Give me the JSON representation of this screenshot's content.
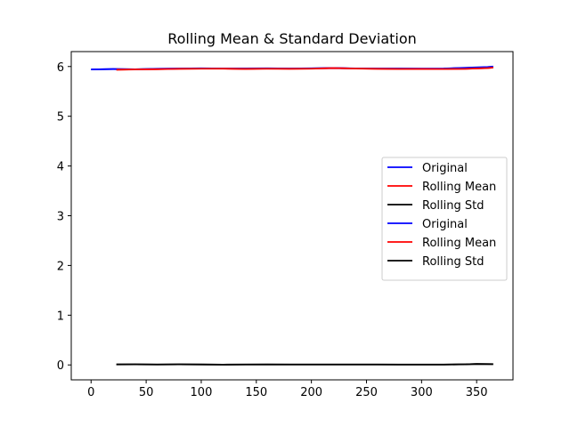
{
  "chart_data": {
    "type": "line",
    "title": "Rolling Mean & Standard Deviation",
    "xlabel": "",
    "ylabel": "",
    "xlim": [
      -18,
      383
    ],
    "ylim": [
      -0.3,
      6.3
    ],
    "x_ticks": [
      0,
      50,
      100,
      150,
      200,
      250,
      300,
      350
    ],
    "y_ticks": [
      0,
      1,
      2,
      3,
      4,
      5,
      6
    ],
    "grid": false,
    "legend_position": "center-right",
    "series": [
      {
        "name": "Original",
        "color": "#0000ff",
        "points": [
          [
            0,
            5.94
          ],
          [
            20,
            5.95
          ],
          [
            40,
            5.945
          ],
          [
            60,
            5.955
          ],
          [
            80,
            5.96
          ],
          [
            100,
            5.965
          ],
          [
            120,
            5.96
          ],
          [
            140,
            5.962
          ],
          [
            160,
            5.965
          ],
          [
            180,
            5.96
          ],
          [
            200,
            5.965
          ],
          [
            220,
            5.97
          ],
          [
            240,
            5.962
          ],
          [
            260,
            5.96
          ],
          [
            280,
            5.96
          ],
          [
            300,
            5.958
          ],
          [
            320,
            5.96
          ],
          [
            340,
            5.975
          ],
          [
            360,
            5.99
          ],
          [
            365,
            6.0
          ]
        ]
      },
      {
        "name": "Rolling Mean",
        "color": "#ff0000",
        "points": [
          [
            23,
            5.935
          ],
          [
            40,
            5.94
          ],
          [
            60,
            5.945
          ],
          [
            80,
            5.955
          ],
          [
            100,
            5.958
          ],
          [
            120,
            5.958
          ],
          [
            140,
            5.95
          ],
          [
            160,
            5.958
          ],
          [
            180,
            5.955
          ],
          [
            200,
            5.958
          ],
          [
            220,
            5.97
          ],
          [
            240,
            5.96
          ],
          [
            260,
            5.955
          ],
          [
            280,
            5.952
          ],
          [
            300,
            5.952
          ],
          [
            320,
            5.95
          ],
          [
            340,
            5.955
          ],
          [
            360,
            5.97
          ],
          [
            365,
            5.98
          ]
        ]
      },
      {
        "name": "Rolling Std",
        "color": "#000000",
        "points": [
          [
            23,
            0.01
          ],
          [
            40,
            0.012
          ],
          [
            60,
            0.008
          ],
          [
            80,
            0.012
          ],
          [
            100,
            0.009
          ],
          [
            120,
            0.006
          ],
          [
            140,
            0.008
          ],
          [
            160,
            0.009
          ],
          [
            180,
            0.008
          ],
          [
            200,
            0.008
          ],
          [
            220,
            0.008
          ],
          [
            240,
            0.008
          ],
          [
            260,
            0.008
          ],
          [
            280,
            0.007
          ],
          [
            300,
            0.007
          ],
          [
            320,
            0.007
          ],
          [
            340,
            0.012
          ],
          [
            350,
            0.02
          ],
          [
            365,
            0.015
          ]
        ]
      },
      {
        "name": "Original",
        "color": "#0000ff",
        "points": [
          [
            0,
            5.942
          ],
          [
            20,
            5.948
          ],
          [
            40,
            5.944
          ],
          [
            60,
            5.952
          ],
          [
            80,
            5.958
          ],
          [
            100,
            5.963
          ],
          [
            120,
            5.958
          ],
          [
            140,
            5.96
          ],
          [
            160,
            5.962
          ],
          [
            180,
            5.958
          ],
          [
            200,
            5.962
          ],
          [
            220,
            5.968
          ],
          [
            240,
            5.96
          ],
          [
            260,
            5.958
          ],
          [
            280,
            5.958
          ],
          [
            300,
            5.956
          ],
          [
            320,
            5.958
          ],
          [
            340,
            5.972
          ],
          [
            360,
            5.985
          ],
          [
            365,
            5.998
          ]
        ]
      },
      {
        "name": "Rolling Mean",
        "color": "#ff0000",
        "points": [
          [
            23,
            5.937
          ],
          [
            40,
            5.942
          ],
          [
            60,
            5.947
          ],
          [
            80,
            5.953
          ],
          [
            100,
            5.956
          ],
          [
            120,
            5.956
          ],
          [
            140,
            5.952
          ],
          [
            160,
            5.956
          ],
          [
            180,
            5.953
          ],
          [
            200,
            5.956
          ],
          [
            220,
            5.968
          ],
          [
            240,
            5.958
          ],
          [
            260,
            5.953
          ],
          [
            280,
            5.95
          ],
          [
            300,
            5.95
          ],
          [
            320,
            5.949
          ],
          [
            340,
            5.953
          ],
          [
            360,
            5.968
          ],
          [
            365,
            5.978
          ]
        ]
      },
      {
        "name": "Rolling Std",
        "color": "#000000",
        "points": [
          [
            23,
            0.011
          ],
          [
            40,
            0.011
          ],
          [
            60,
            0.009
          ],
          [
            80,
            0.011
          ],
          [
            100,
            0.01
          ],
          [
            120,
            0.007
          ],
          [
            140,
            0.009
          ],
          [
            160,
            0.01
          ],
          [
            180,
            0.009
          ],
          [
            200,
            0.009
          ],
          [
            220,
            0.009
          ],
          [
            240,
            0.009
          ],
          [
            260,
            0.009
          ],
          [
            280,
            0.008
          ],
          [
            300,
            0.008
          ],
          [
            320,
            0.008
          ],
          [
            340,
            0.013
          ],
          [
            350,
            0.019
          ],
          [
            365,
            0.016
          ]
        ]
      }
    ]
  }
}
